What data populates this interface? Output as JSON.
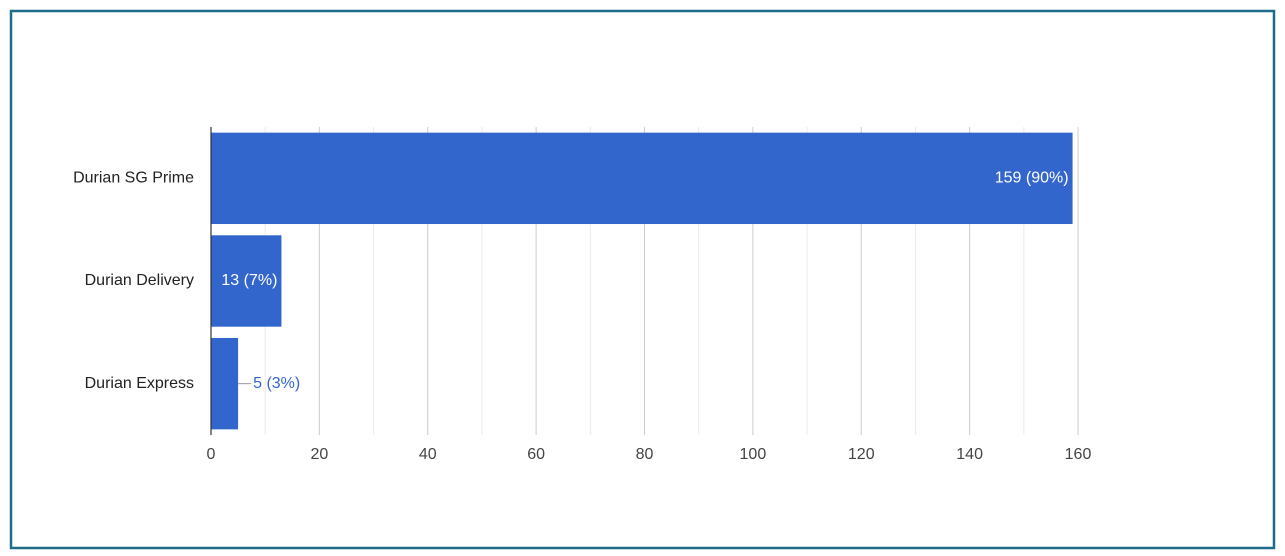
{
  "chart_data": {
    "type": "bar",
    "orientation": "horizontal",
    "categories": [
      "Durian SG Prime",
      "Durian Delivery",
      "Durian Express"
    ],
    "values": [
      159,
      13,
      5
    ],
    "value_labels": [
      "159 (90%)",
      "13 (7%)",
      "5 (3%)"
    ],
    "color": "#3366cc",
    "xlim": [
      0,
      160
    ],
    "xticks": [
      0,
      20,
      40,
      60,
      80,
      100,
      120,
      140,
      160
    ],
    "xminorticks": [
      10,
      30,
      50,
      70,
      90,
      110,
      130,
      150
    ],
    "grid": true
  }
}
